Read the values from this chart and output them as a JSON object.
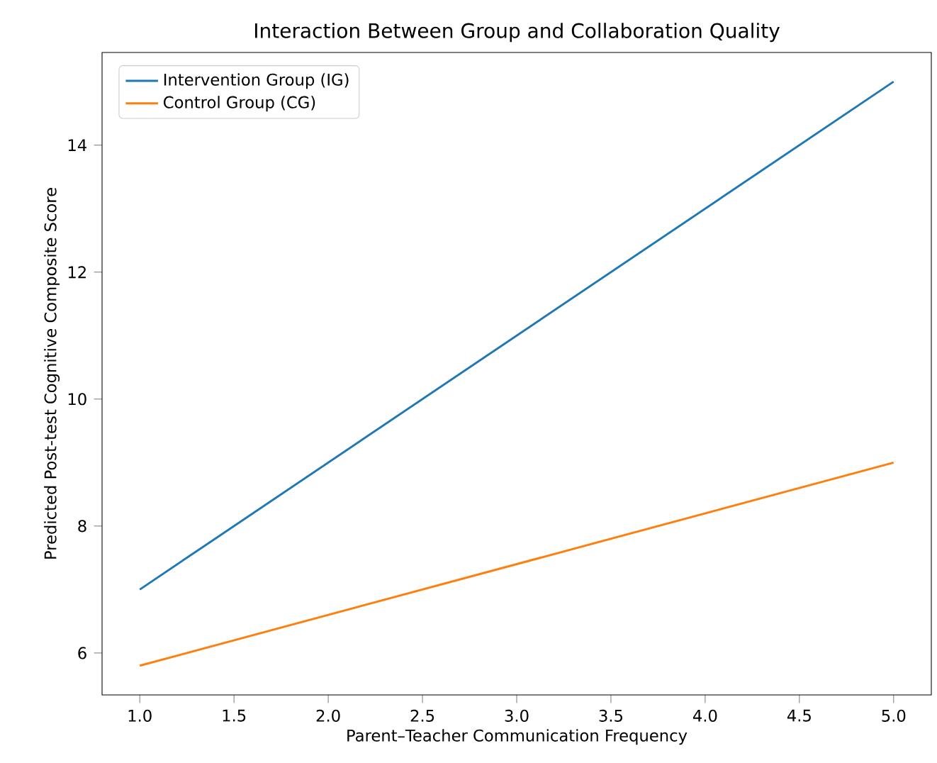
{
  "chart_data": {
    "type": "line",
    "title": "Interaction Between Group and Collaboration Quality",
    "xlabel": "Parent–Teacher Communication Frequency",
    "ylabel": "Predicted Post-test Cognitive Composite Score",
    "x": [
      1,
      5
    ],
    "series": [
      {
        "name": "Intervention Group (IG)",
        "color": "#1f77b4",
        "values": [
          7,
          15
        ]
      },
      {
        "name": "Control Group (CG)",
        "color": "#ff7f0e",
        "values": [
          5.8,
          9
        ]
      }
    ],
    "xlim": [
      0.8,
      5.2
    ],
    "xticks": [
      {
        "value": 1,
        "label": "1.0"
      },
      {
        "value": 1.5,
        "label": "1.5"
      },
      {
        "value": 2,
        "label": "2.0"
      },
      {
        "value": 2.5,
        "label": "2.5"
      },
      {
        "value": 3,
        "label": "3.0"
      },
      {
        "value": 3.5,
        "label": "3.5"
      },
      {
        "value": 4,
        "label": "4.0"
      },
      {
        "value": 4.5,
        "label": "4.5"
      },
      {
        "value": 5,
        "label": "5.0"
      }
    ],
    "ylim": [
      5.34,
      15.46
    ],
    "yticks": [
      6,
      8,
      10,
      12,
      14
    ],
    "legend": "top left",
    "grid": false,
    "marker": "none",
    "line_style": "solid"
  }
}
